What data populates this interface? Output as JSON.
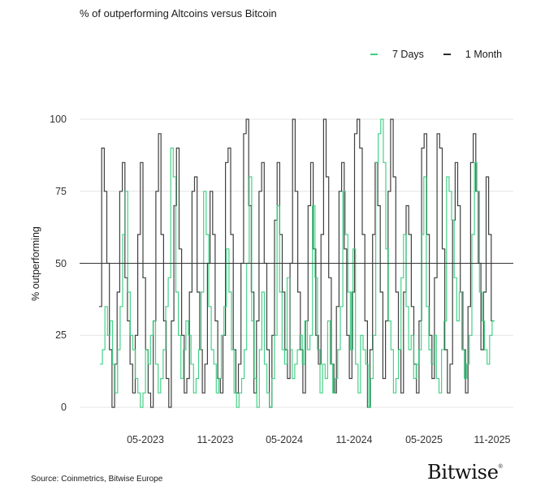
{
  "chart_data": {
    "type": "line",
    "step": true,
    "title": "% of outperforming Altcoins versus Bitcoin",
    "xlabel": "",
    "ylabel": "% outperforming",
    "ylim": [
      0,
      100
    ],
    "yticks": [
      0,
      25,
      50,
      75,
      100
    ],
    "xticks": [
      "05-2023",
      "11-2023",
      "05-2024",
      "11-2024",
      "05-2025",
      "11-2025"
    ],
    "x_range": [
      "01-2023",
      "11-2025"
    ],
    "reference_line": 50,
    "grid": true,
    "legend_position": "top-right",
    "series": [
      {
        "name": "7 Days",
        "color": "#3dcf82",
        "values": [
          15,
          20,
          35,
          25,
          30,
          15,
          5,
          20,
          35,
          60,
          75,
          40,
          25,
          20,
          10,
          5,
          0,
          5,
          20,
          15,
          25,
          30,
          15,
          5,
          10,
          20,
          35,
          45,
          90,
          80,
          40,
          25,
          10,
          20,
          30,
          25,
          15,
          5,
          10,
          20,
          40,
          75,
          60,
          35,
          20,
          15,
          5,
          10,
          25,
          35,
          55,
          40,
          20,
          5,
          0,
          5,
          10,
          20,
          50,
          80,
          30,
          10,
          0,
          20,
          40,
          15,
          5,
          0,
          10,
          25,
          70,
          40,
          20,
          15,
          45,
          20,
          10,
          15,
          20,
          25,
          15,
          30,
          20,
          25,
          70,
          45,
          20,
          5,
          15,
          10,
          30,
          15,
          5,
          10,
          20,
          35,
          75,
          60,
          40,
          20,
          55,
          15,
          5,
          25,
          20,
          15,
          0,
          10,
          25,
          85,
          95,
          100,
          85,
          55,
          30,
          20,
          5,
          10,
          20,
          45,
          60,
          35,
          20,
          25,
          10,
          15,
          20,
          60,
          80,
          35,
          20,
          15,
          25,
          10,
          5,
          20,
          30,
          80,
          75,
          65,
          45,
          30,
          40,
          20,
          10,
          15,
          25,
          60,
          85,
          75,
          40,
          30,
          20,
          15,
          25,
          30
        ],
        "approx_weekly_from": "01-2023"
      },
      {
        "name": "1 Month",
        "color": "#2b2b2b",
        "values": [
          35,
          90,
          75,
          50,
          20,
          0,
          15,
          40,
          75,
          85,
          45,
          30,
          15,
          5,
          25,
          60,
          85,
          45,
          20,
          5,
          0,
          30,
          75,
          95,
          60,
          30,
          10,
          0,
          30,
          70,
          90,
          55,
          25,
          5,
          10,
          40,
          75,
          80,
          40,
          20,
          5,
          15,
          50,
          75,
          60,
          30,
          10,
          5,
          25,
          85,
          90,
          60,
          20,
          5,
          15,
          50,
          95,
          100,
          70,
          40,
          5,
          30,
          75,
          85,
          50,
          20,
          0,
          25,
          65,
          85,
          60,
          40,
          20,
          10,
          50,
          100,
          75,
          40,
          20,
          5,
          30,
          70,
          85,
          55,
          25,
          15,
          60,
          100,
          80,
          45,
          15,
          5,
          35,
          75,
          85,
          55,
          25,
          10,
          40,
          95,
          100,
          90,
          60,
          30,
          0,
          20,
          60,
          85,
          70,
          40,
          10,
          30,
          75,
          100,
          80,
          40,
          20,
          5,
          40,
          70,
          60,
          35,
          15,
          5,
          30,
          90,
          95,
          60,
          25,
          10,
          45,
          95,
          90,
          55,
          20,
          5,
          15,
          65,
          85,
          70,
          40,
          20,
          5,
          35,
          85,
          95,
          75,
          50,
          20,
          40,
          80,
          60,
          30
        ],
        "approx_weekly_from": "01-2023"
      }
    ]
  },
  "header": {
    "title": "% of outperforming Altcoins versus Bitcoin"
  },
  "legend": {
    "items": [
      {
        "label": "7 Days",
        "color": "#3dcf82"
      },
      {
        "label": "1 Month",
        "color": "#2b2b2b"
      }
    ]
  },
  "axes": {
    "ylabel": "% outperforming",
    "yticks": [
      "100",
      "75",
      "50",
      "25",
      "0"
    ],
    "xticks": [
      "05-2023",
      "11-2023",
      "05-2024",
      "11-2024",
      "05-2025",
      "11-2025"
    ]
  },
  "footer": {
    "source": "Source: Coinmetrics, Bitwise Europe",
    "logo": "Bitwise",
    "logo_mark": "®"
  }
}
